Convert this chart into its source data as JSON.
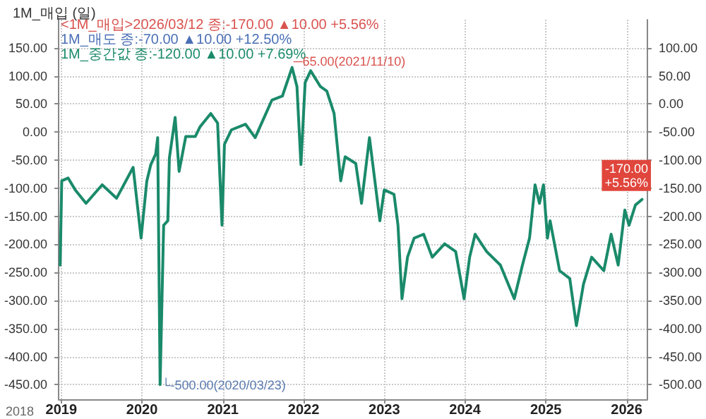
{
  "chart_data": {
    "type": "line",
    "title": "1M_매입 (일)",
    "x": [
      "2018-12-27",
      "2019-01-03",
      "2019-02-01",
      "2019-03-05",
      "2019-04-23",
      "2019-07-05",
      "2019-09-08",
      "2019-11-22",
      "2019-12-28",
      "2020-01-23",
      "2020-02-10",
      "2020-03-03",
      "2020-03-12",
      "2020-03-23",
      "2020-04-08",
      "2020-04-27",
      "2020-05-04",
      "2020-05-30",
      "2020-06-17",
      "2020-07-17",
      "2020-08-29",
      "2020-09-19",
      "2020-11-07",
      "2020-12-08",
      "2020-12-28",
      "2021-01-08",
      "2021-02-09",
      "2021-04-13",
      "2021-05-27",
      "2021-07-09",
      "2021-08-11",
      "2021-09-27",
      "2021-11-10",
      "2021-12-02",
      "2021-12-20",
      "2022-01-08",
      "2022-02-02",
      "2022-03-18",
      "2022-04-16",
      "2022-05-19",
      "2022-06-18",
      "2022-07-08",
      "2022-08-25",
      "2022-09-20",
      "2022-10-26",
      "2022-12-12",
      "2023-01-01",
      "2023-02-14",
      "2023-03-04",
      "2023-03-22",
      "2023-04-16",
      "2023-05-16",
      "2023-06-28",
      "2023-08-06",
      "2023-10-01",
      "2023-11-20",
      "2023-12-28",
      "2024-01-22",
      "2024-02-16",
      "2024-04-08",
      "2024-06-09",
      "2024-08-11",
      "2024-09-17",
      "2024-10-19",
      "2024-11-13",
      "2024-12-03",
      "2024-12-21",
      "2025-01-08",
      "2025-01-20",
      "2025-03-04",
      "2025-04-19",
      "2025-05-19",
      "2025-06-20",
      "2025-07-27",
      "2025-09-20",
      "2025-10-23",
      "2025-11-24",
      "2025-12-24",
      "2026-01-12",
      "2026-02-10",
      "2026-03-12"
    ],
    "series": [
      {
        "color": "#1a8a6a",
        "axis": "y2",
        "values": [
          -287,
          -137,
          -132,
          -153,
          -177,
          -144,
          -168,
          -113,
          -239,
          -137,
          -108,
          -89,
          -60,
          -500,
          -216,
          -208,
          -96,
          -24,
          -120,
          -58,
          -58,
          -41,
          -17,
          -34,
          -216,
          -72,
          -46,
          -36,
          -60,
          -22,
          7,
          14,
          65,
          31,
          -108,
          38,
          59,
          31,
          23,
          -17,
          -137,
          -94,
          -106,
          -177,
          -60,
          -208,
          -153,
          -161,
          -216,
          -347,
          -273,
          -239,
          -232,
          -273,
          -249,
          -263,
          -347,
          -273,
          -232,
          -263,
          -287,
          -347,
          -287,
          -239,
          -144,
          -177,
          -144,
          -239,
          -208,
          -297,
          -311,
          -395,
          -321,
          -273,
          -297,
          -232,
          -287,
          -189,
          -216,
          -180,
          -170
        ]
      }
    ],
    "xlim": [
      "2018-12-20",
      "2026-04-05"
    ],
    "xticks": [
      "2019",
      "2020",
      "2021",
      "2022",
      "2023",
      "2024",
      "2025",
      "2026"
    ],
    "ylim": [
      -476,
      200
    ],
    "yticks": [
      {
        "value": 150,
        "label": "150.00"
      },
      {
        "value": 100,
        "label": "100.00"
      },
      {
        "value": 50,
        "label": "50.00"
      },
      {
        "value": 0,
        "label": "0.00"
      },
      {
        "value": -50,
        "label": "-50.00"
      },
      {
        "value": -100,
        "label": "-100.00"
      },
      {
        "value": -150,
        "label": "-150.00"
      },
      {
        "value": -200,
        "label": "-200.00"
      },
      {
        "value": -250,
        "label": "-250.00"
      },
      {
        "value": -300,
        "label": "-300.00"
      },
      {
        "value": -350,
        "label": "-350.00"
      },
      {
        "value": -400,
        "label": "-400.00"
      },
      {
        "value": -450,
        "label": "-450.00"
      }
    ],
    "y2lim": [
      -526,
      150
    ],
    "y2ticks": [
      {
        "value": 100,
        "label": "100.00"
      },
      {
        "value": 50,
        "label": "50.00"
      },
      {
        "value": 0,
        "label": "0.00"
      },
      {
        "value": -50,
        "label": "-50.00"
      },
      {
        "value": -100,
        "label": "-100.00"
      },
      {
        "value": -150,
        "label": "-150.00"
      },
      {
        "value": -200,
        "label": "-200.00"
      },
      {
        "value": -250,
        "label": "-250.00"
      },
      {
        "value": -300,
        "label": "-300.00"
      },
      {
        "value": -350,
        "label": "-350.00"
      },
      {
        "value": -400,
        "label": "-400.00"
      },
      {
        "value": -450,
        "label": "-450.00"
      },
      {
        "value": -500,
        "label": "-500.00"
      }
    ],
    "grid": true,
    "line_style": "solid",
    "marker": "none",
    "annotations": [
      "<1M_매입>2026/03/12 종:-170.00 ▲10.00 +5.56%",
      "1M_매도 종:-70.00 ▲10.00 +12.50%",
      "1M_중간값 종:-120.00 ▲10.00 +7.69%",
      {
        "text": "─65.00(2021/11/10)",
        "x": "2021-11-10",
        "y": 65
      },
      "└-500.00(2020/03/23)",
      "-170.00\n+5.56%",
      "2018"
    ]
  }
}
